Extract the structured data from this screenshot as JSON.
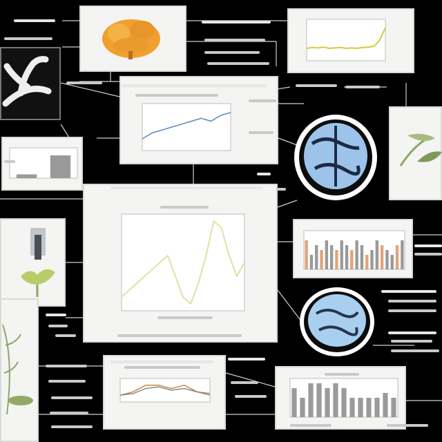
{
  "colors": {
    "background": "#000000",
    "card": "#f4f4f2",
    "line_main": "#e3dfa6",
    "line_accent": "#d7c93a",
    "bar_grey": "#9a9a9a",
    "bar_orange": "#e1a47a",
    "brain_blue": "#9dc3ea",
    "tree_orange": "#f0a030",
    "plant_green": "#8ea66a"
  },
  "icons": [
    "tree-crown-icon",
    "antler-icon",
    "brain-scan-icon",
    "seedling-icon",
    "leaf-branch-icon",
    "plant-stem-icon"
  ],
  "chart_data": [
    {
      "type": "line",
      "x": [
        1,
        2,
        3,
        4,
        5,
        6,
        7,
        8,
        9,
        10,
        11,
        12,
        13,
        14,
        15,
        16,
        17
      ],
      "series": [
        {
          "values": [
            2,
            3,
            4,
            5,
            6,
            7,
            8,
            5,
            2,
            1,
            4,
            8,
            13,
            12,
            8,
            5,
            7
          ]
        }
      ],
      "ylim": [
        0,
        14
      ]
    },
    {
      "type": "line",
      "x": [
        1,
        2,
        3,
        4,
        5,
        6,
        7,
        8,
        9,
        10,
        11,
        12,
        13,
        14,
        15
      ],
      "series": [
        {
          "values": [
            3,
            3.2,
            3.1,
            3.3,
            3,
            3.1,
            3.2,
            3,
            3.1,
            3,
            3.2,
            3.3,
            3.5,
            5,
            8
          ]
        }
      ],
      "ylim": [
        0,
        10
      ]
    },
    {
      "type": "line",
      "x": [
        1,
        2,
        3,
        4,
        5,
        6,
        7,
        8,
        9,
        10
      ],
      "series": [
        {
          "values": [
            2,
            3,
            3.5,
            4,
            4.5,
            5,
            5.5,
            5,
            6,
            6.5
          ]
        }
      ],
      "ylim": [
        0,
        8
      ]
    },
    {
      "type": "bar",
      "categories": [
        "1",
        "2",
        "3",
        "4",
        "5",
        "6",
        "7",
        "8",
        "9",
        "10",
        "11",
        "12",
        "13",
        "14",
        "15",
        "16",
        "17",
        "18",
        "19",
        "20"
      ],
      "values": [
        6,
        3,
        5,
        4,
        6,
        5,
        4,
        6,
        5,
        4,
        6,
        5,
        3,
        4,
        6,
        5,
        4,
        3,
        5,
        6
      ],
      "ylim": [
        0,
        8
      ]
    },
    {
      "type": "bar",
      "categories": [
        "1",
        "2",
        "3",
        "4",
        "5",
        "6",
        "7",
        "8",
        "9",
        "10",
        "11",
        "12",
        "13"
      ],
      "values": [
        6,
        4,
        7,
        7,
        6,
        7,
        6,
        4,
        4,
        4,
        4,
        5,
        4
      ],
      "ylim": [
        0,
        8
      ]
    },
    {
      "type": "line",
      "x": [
        1,
        2,
        3,
        4,
        5,
        6,
        7,
        8
      ],
      "series": [
        {
          "values": [
            2,
            3,
            5,
            5,
            4,
            5,
            3,
            2
          ]
        },
        {
          "values": [
            2,
            2.5,
            4,
            4.5,
            3.5,
            4,
            3,
            2.5
          ]
        }
      ],
      "ylim": [
        0,
        7
      ]
    },
    {
      "type": "bar",
      "categories": [
        "1",
        "2"
      ],
      "values": [
        1,
        6
      ],
      "ylim": [
        0,
        8
      ]
    }
  ]
}
